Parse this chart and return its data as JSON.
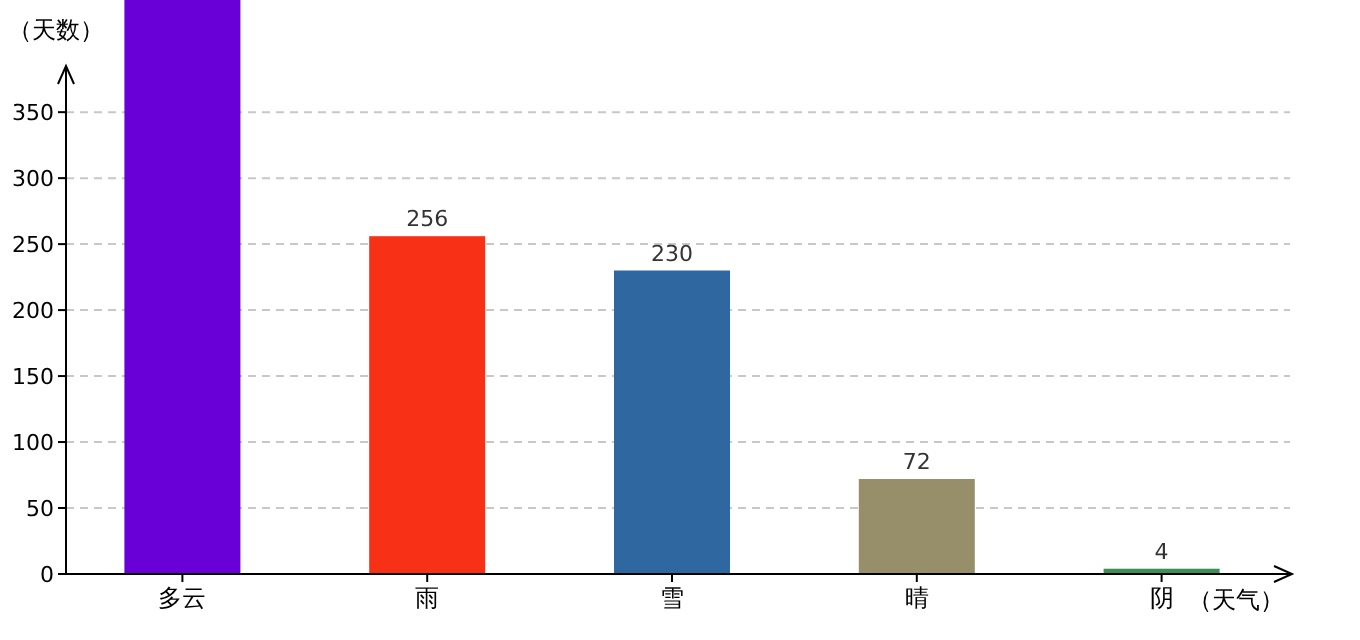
{
  "chart_data": {
    "type": "bar",
    "ylabel": "（天数）",
    "xlabel": "（天气）",
    "categories": [
      "多云",
      "雨",
      "雪",
      "晴",
      "阴"
    ],
    "values": [
      435,
      256,
      230,
      72,
      4
    ],
    "value_labels": [
      null,
      "256",
      "230",
      "72",
      "4"
    ],
    "colors": [
      "#6a00d8",
      "#f83015",
      "#2f67a1",
      "#968f6a",
      "#3e8e5a"
    ],
    "ylim": [
      0,
      435
    ],
    "yticks": [
      0,
      50,
      100,
      150,
      200,
      250,
      300,
      350
    ],
    "grid": "y"
  }
}
